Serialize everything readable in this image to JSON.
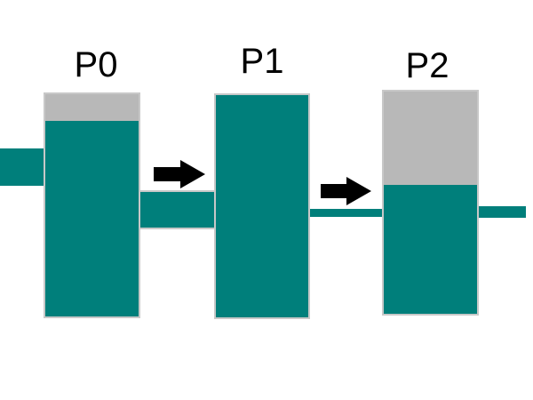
{
  "diagram": {
    "processes": [
      {
        "label": "P0",
        "level": 0.88
      },
      {
        "label": "P1",
        "level": 1.0
      },
      {
        "label": "P2",
        "level": 0.58
      }
    ],
    "arrows": [
      {
        "from": "P0",
        "to": "P1",
        "icon": "right-arrow-icon"
      },
      {
        "from": "P1",
        "to": "P2",
        "icon": "right-arrow-icon"
      }
    ]
  },
  "colors": {
    "fluid": "#007f7b",
    "empty": "#b8b8b8",
    "outline": "#c8c8c8",
    "arrow": "#000000",
    "label": "#000000"
  }
}
